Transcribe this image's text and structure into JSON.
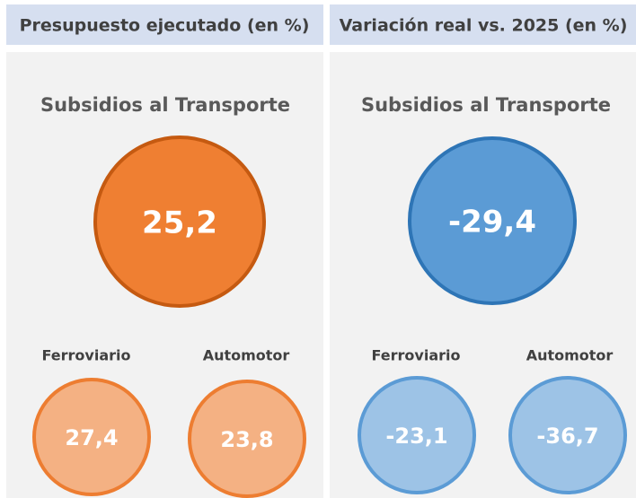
{
  "panels": [
    {
      "header": "Presupuesto ejecutado (en %)",
      "title": "Subsidios al Transporte",
      "main": "25,2",
      "items": [
        {
          "label": "Ferroviario",
          "value": "27,4"
        },
        {
          "label": "Automotor",
          "value": "23,8"
        }
      ]
    },
    {
      "header": "Variación real vs. 2025 (en %)",
      "title": "Subsidios al Transporte",
      "main": "-29,4",
      "items": [
        {
          "label": "Ferroviario",
          "value": "-23,1"
        },
        {
          "label": "Automotor",
          "value": "-36,7"
        }
      ]
    }
  ]
}
